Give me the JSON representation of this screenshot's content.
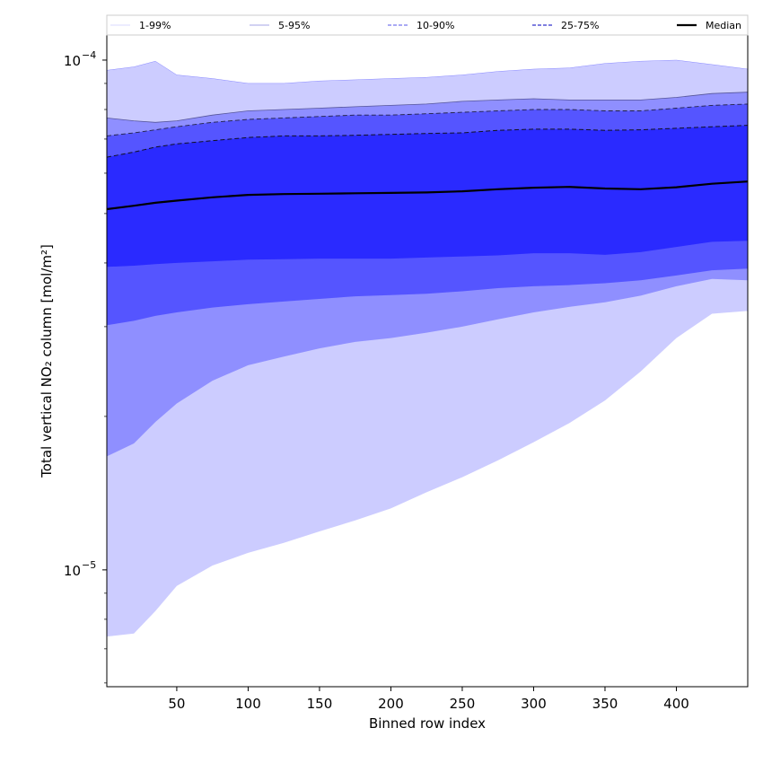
{
  "chart_data": {
    "type": "area",
    "x_label": "Binned row index",
    "y_label": "Total vertical NO₂ column [mol/m²]",
    "x_range": [
      1,
      450
    ],
    "y_range": [
      5.9e-06,
      0.000112
    ],
    "y_scale": "log",
    "x_ticks": [
      50,
      100,
      150,
      200,
      250,
      300,
      350,
      400
    ],
    "x_tick_labels": [
      "50",
      "100",
      "150",
      "200",
      "250",
      "300",
      "350",
      "400"
    ],
    "y_ticks": [
      1e-05,
      0.0001
    ],
    "y_tick_label_base": "10",
    "y_tick_label_exponents": [
      "−5",
      "−4"
    ],
    "grid": false,
    "legend_position": "top",
    "legend": [
      {
        "label": "1-99%",
        "style": "solid-thin",
        "color": "#ccccff"
      },
      {
        "label": "5-95%",
        "style": "solid-thin",
        "color": "#8888dd"
      },
      {
        "label": "10-90%",
        "style": "dashed",
        "color": "#7777ee"
      },
      {
        "label": "25-75%",
        "style": "dashed",
        "color": "#3333cc"
      },
      {
        "label": "Median",
        "style": "solid-thick",
        "color": "#000000"
      }
    ],
    "fill_colors": {
      "band_1_99": "#ccccff",
      "band_5_95": "#8f8fff",
      "band_10_90": "#5555ff",
      "band_25_75": "#2a2aff"
    },
    "x": [
      1,
      20,
      35,
      50,
      75,
      100,
      125,
      150,
      175,
      200,
      225,
      250,
      275,
      300,
      325,
      350,
      375,
      400,
      425,
      450
    ],
    "series": [
      {
        "name": "1-99%",
        "role": "lower",
        "values": [
          7.4e-06,
          7.5e-06,
          8.3e-06,
          9.3e-06,
          1.02e-05,
          1.08e-05,
          1.13e-05,
          1.19e-05,
          1.25e-05,
          1.32e-05,
          1.42e-05,
          1.52e-05,
          1.64e-05,
          1.78e-05,
          1.94e-05,
          2.15e-05,
          2.45e-05,
          2.85e-05,
          3.18e-05,
          3.22e-05
        ]
      },
      {
        "name": "1-99%",
        "role": "upper",
        "values": [
          9.55e-05,
          9.7e-05,
          9.95e-05,
          9.35e-05,
          9.2e-05,
          9e-05,
          9e-05,
          9.1e-05,
          9.15e-05,
          9.2e-05,
          9.25e-05,
          9.35e-05,
          9.5e-05,
          9.6e-05,
          9.65e-05,
          9.85e-05,
          9.95e-05,
          0.0001,
          9.8e-05,
          9.6e-05
        ]
      },
      {
        "name": "5-95%",
        "role": "lower",
        "values": [
          1.67e-05,
          1.77e-05,
          1.95e-05,
          2.12e-05,
          2.35e-05,
          2.52e-05,
          2.62e-05,
          2.72e-05,
          2.8e-05,
          2.85e-05,
          2.92e-05,
          3e-05,
          3.1e-05,
          3.2e-05,
          3.28e-05,
          3.35e-05,
          3.45e-05,
          3.6e-05,
          3.72e-05,
          3.7e-05
        ]
      },
      {
        "name": "5-95%",
        "role": "upper",
        "values": [
          7.7e-05,
          7.6e-05,
          7.55e-05,
          7.6e-05,
          7.8e-05,
          7.95e-05,
          8e-05,
          8.05e-05,
          8.1e-05,
          8.15e-05,
          8.2e-05,
          8.3e-05,
          8.35e-05,
          8.4e-05,
          8.35e-05,
          8.35e-05,
          8.35e-05,
          8.45e-05,
          8.6e-05,
          8.65e-05
        ]
      },
      {
        "name": "10-90%",
        "role": "lower",
        "values": [
          3.02e-05,
          3.08e-05,
          3.15e-05,
          3.2e-05,
          3.27e-05,
          3.32e-05,
          3.36e-05,
          3.4e-05,
          3.44e-05,
          3.46e-05,
          3.48e-05,
          3.52e-05,
          3.57e-05,
          3.6e-05,
          3.62e-05,
          3.65e-05,
          3.7e-05,
          3.78e-05,
          3.87e-05,
          3.9e-05
        ]
      },
      {
        "name": "10-90%",
        "role": "upper",
        "values": [
          7.1e-05,
          7.2e-05,
          7.3e-05,
          7.4e-05,
          7.55e-05,
          7.65e-05,
          7.7e-05,
          7.75e-05,
          7.8e-05,
          7.8e-05,
          7.85e-05,
          7.9e-05,
          7.95e-05,
          8e-05,
          8e-05,
          7.95e-05,
          7.95e-05,
          8.05e-05,
          8.15e-05,
          8.2e-05
        ]
      },
      {
        "name": "25-75%",
        "role": "lower",
        "values": [
          3.93e-05,
          3.95e-05,
          3.98e-05,
          4e-05,
          4.03e-05,
          4.06e-05,
          4.07e-05,
          4.08e-05,
          4.08e-05,
          4.08e-05,
          4.1e-05,
          4.12e-05,
          4.14e-05,
          4.18e-05,
          4.18e-05,
          4.15e-05,
          4.2e-05,
          4.3e-05,
          4.4e-05,
          4.42e-05
        ]
      },
      {
        "name": "25-75%",
        "role": "upper",
        "values": [
          6.45e-05,
          6.6e-05,
          6.75e-05,
          6.85e-05,
          6.95e-05,
          7.05e-05,
          7.1e-05,
          7.1e-05,
          7.12e-05,
          7.15e-05,
          7.18e-05,
          7.2e-05,
          7.28e-05,
          7.32e-05,
          7.32e-05,
          7.28e-05,
          7.3e-05,
          7.35e-05,
          7.4e-05,
          7.45e-05
        ]
      },
      {
        "name": "Median",
        "role": "line",
        "values": [
          5.1e-05,
          5.18e-05,
          5.25e-05,
          5.3e-05,
          5.38e-05,
          5.44e-05,
          5.46e-05,
          5.47e-05,
          5.48e-05,
          5.49e-05,
          5.5e-05,
          5.53e-05,
          5.58e-05,
          5.62e-05,
          5.64e-05,
          5.6e-05,
          5.58e-05,
          5.63e-05,
          5.72e-05,
          5.78e-05
        ]
      }
    ]
  }
}
